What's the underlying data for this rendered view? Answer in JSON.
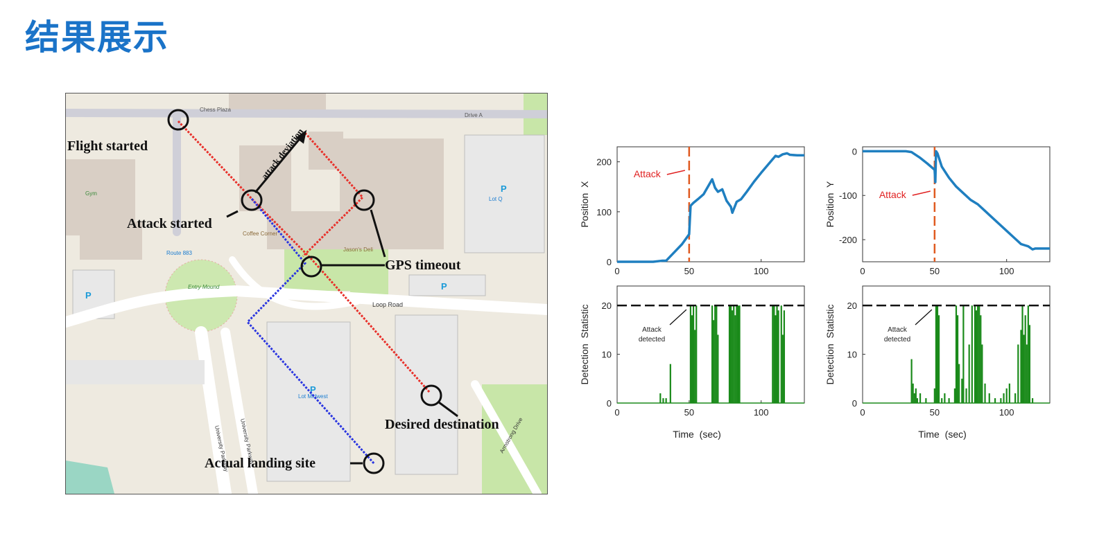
{
  "page": {
    "title": "结果展示"
  },
  "map": {
    "annotations": {
      "flight_started": "Flight started",
      "attack_started": "Attack started",
      "attack_deviation": "attack deviation",
      "gps_timeout": "GPS timeout",
      "desired_destination": "Desired destination",
      "actual_landing_site": "Actual landing site"
    },
    "labels": {
      "chess_plaza": "Chess Plaza",
      "drive_a": "Drive A",
      "gym": "Gym",
      "coffee_corner": "Coffee Corner",
      "jasons_deli": "Jason's Deli",
      "jason_deli_2": "Jason Deli",
      "route_883": "Route 883",
      "entry_mound": "Entry Mound",
      "loop_road": "Loop Road",
      "lot_q": "Lot Q",
      "lot_west": "Lot Midwest",
      "university_parkway": "University Parkway",
      "university_parkway_2": "University Parkway",
      "armstrong_drive": "Armstrong Drive",
      "parking": "P"
    },
    "colors": {
      "planned_path": "#e8302a",
      "actual_path": "#2a35e0",
      "park": "#c8e6a8"
    }
  },
  "chart_data": [
    {
      "type": "line",
      "panel": "top-left",
      "ylabel": "Position X",
      "xlim": [
        0,
        130
      ],
      "ylim": [
        0,
        230
      ],
      "xticks": [
        0,
        50,
        100
      ],
      "yticks": [
        0,
        100,
        200
      ],
      "annotation": "Attack",
      "attack_time": 50,
      "series": [
        {
          "color": "#1f7fc0",
          "x": [
            0,
            25,
            31,
            34,
            40,
            45,
            50,
            51,
            53,
            56,
            60,
            64,
            66,
            68,
            70,
            73,
            76,
            79,
            80,
            83,
            86,
            90,
            95,
            100,
            105,
            110,
            112,
            115,
            118,
            120,
            125,
            130
          ],
          "values": [
            0,
            0,
            2,
            2,
            20,
            35,
            55,
            112,
            118,
            125,
            135,
            155,
            165,
            148,
            140,
            145,
            122,
            110,
            98,
            120,
            125,
            140,
            160,
            178,
            195,
            212,
            210,
            215,
            217,
            214,
            213,
            213
          ]
        }
      ]
    },
    {
      "type": "line",
      "panel": "top-right",
      "ylabel": "Position Y",
      "xlim": [
        0,
        130
      ],
      "ylim": [
        -250,
        10
      ],
      "xticks": [
        0,
        50,
        100
      ],
      "yticks": [
        0,
        -100,
        -200
      ],
      "annotation": "Attack",
      "attack_time": 50,
      "series": [
        {
          "color": "#1f7fc0",
          "x": [
            0,
            10,
            20,
            30,
            34,
            40,
            45,
            50,
            50.5,
            51,
            52,
            55,
            60,
            65,
            70,
            75,
            80,
            85,
            90,
            95,
            100,
            105,
            110,
            112,
            115,
            118,
            120,
            125,
            130
          ],
          "values": [
            0,
            0,
            0,
            0,
            -2,
            -15,
            -28,
            -42,
            -70,
            0,
            -5,
            -35,
            -60,
            -80,
            -95,
            -110,
            -120,
            -135,
            -150,
            -165,
            -180,
            -195,
            -210,
            -212,
            -215,
            -222,
            -220,
            -220,
            -220
          ]
        }
      ]
    },
    {
      "type": "bar",
      "panel": "bottom-left",
      "xlabel": "Time (sec)",
      "ylabel": "Detection Statistic",
      "xlim": [
        0,
        130
      ],
      "ylim": [
        0,
        24
      ],
      "xticks": [
        0,
        50,
        100
      ],
      "yticks": [
        0,
        10,
        20
      ],
      "threshold": 20,
      "annotation": "Attack detected",
      "series": [
        {
          "color": "#1a8a1a",
          "x": [
            30,
            32,
            34,
            37,
            51,
            52,
            53,
            54,
            55,
            66,
            67,
            68,
            69,
            70,
            78,
            79,
            80,
            81,
            82,
            83,
            84,
            85,
            108,
            109,
            110,
            111,
            112,
            114,
            115,
            116
          ],
          "values": [
            2,
            1,
            1,
            8,
            20,
            18,
            20,
            15,
            20,
            20,
            17,
            20,
            20,
            14,
            20,
            20,
            19,
            20,
            18,
            20,
            20,
            20,
            20,
            20,
            18,
            20,
            19,
            20,
            14,
            19
          ]
        }
      ]
    },
    {
      "type": "bar",
      "panel": "bottom-right",
      "xlabel": "Time (sec)",
      "ylabel": "Detection Statistic",
      "xlim": [
        0,
        130
      ],
      "ylim": [
        0,
        24
      ],
      "xticks": [
        0,
        50,
        100
      ],
      "yticks": [
        0,
        10,
        20
      ],
      "threshold": 20,
      "annotation": "Attack detected",
      "series": [
        {
          "color": "#1a8a1a",
          "x": [
            34,
            35,
            36,
            37,
            38,
            40,
            44,
            50,
            51,
            52,
            53,
            55,
            57,
            60,
            64,
            65,
            66,
            67,
            69,
            70,
            72,
            74,
            76,
            78,
            79,
            80,
            81,
            82,
            83,
            85,
            88,
            92,
            96,
            98,
            100,
            102,
            106,
            108,
            110,
            111,
            112,
            113,
            114,
            115,
            116,
            118
          ],
          "values": [
            9,
            4,
            2,
            3,
            1,
            2,
            1,
            3,
            20,
            20,
            18,
            1,
            2,
            1,
            3,
            20,
            18,
            8,
            5,
            20,
            3,
            12,
            20,
            20,
            19,
            20,
            20,
            18,
            12,
            4,
            2,
            1,
            1,
            2,
            3,
            4,
            2,
            12,
            15,
            20,
            14,
            18,
            12,
            20,
            16,
            1
          ]
        }
      ]
    }
  ]
}
